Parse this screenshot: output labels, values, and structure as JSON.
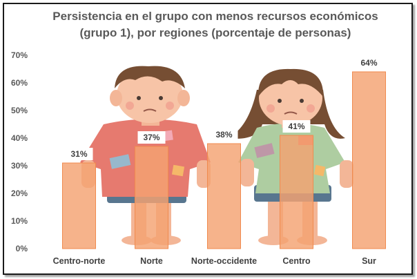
{
  "colors": {
    "bar_fill": "#f4a272",
    "bar_stroke": "#f08a4e",
    "label_bg": "#ffffff",
    "axis_text": "#595959"
  },
  "illustration": {
    "boy_icon": "child-boy-icon",
    "girl_icon": "child-girl-icon"
  },
  "chart_data": {
    "type": "bar",
    "title_line1": "Persistencia en el grupo con menos recursos económicos",
    "title_line2": "(grupo 1), por regiones (porcentaje de personas)",
    "categories": [
      "Centro-norte",
      "Norte",
      "Norte-occidente",
      "Centro",
      "Sur"
    ],
    "values": [
      31,
      37,
      38,
      41,
      64
    ],
    "value_labels": [
      "31%",
      "37%",
      "38%",
      "41%",
      "64%"
    ],
    "ylim": [
      0,
      70
    ],
    "yticks": [
      0,
      10,
      20,
      30,
      40,
      50,
      60,
      70
    ],
    "ytick_labels": [
      "0%",
      "10%",
      "20%",
      "30%",
      "40%",
      "50%",
      "60%",
      "70%"
    ],
    "grid": false,
    "legend": "none"
  }
}
